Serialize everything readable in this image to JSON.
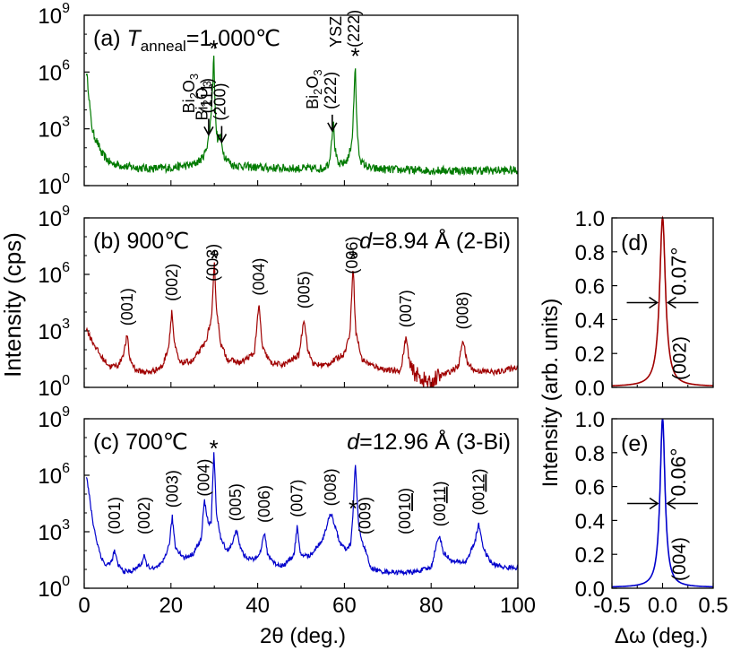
{
  "figure": {
    "y_label_left": "Intensity (cps)",
    "y_label_right": "Intensity (arb. units)",
    "x_label_left": "2θ (deg.)",
    "x_label_right": "Δω (deg.)"
  },
  "chart_data": [
    {
      "id": "a",
      "type": "line",
      "panel_label": "(a)",
      "title_prefix": "T",
      "title_sub": "anneal",
      "title_suffix": "=1,000℃",
      "xlim": [
        0,
        100
      ],
      "ylim_log10": [
        0,
        9
      ],
      "y_ticks": [
        "10^0",
        "10^3",
        "10^6",
        "10^9"
      ],
      "x_ticks": [],
      "color": "#007a00",
      "series": [
        {
          "x": [
            0.5,
            1,
            1.5,
            2,
            3,
            4,
            6,
            10,
            15,
            20,
            25,
            27,
            28,
            28.8,
            29.2,
            29.6,
            29.9,
            30.1,
            30.4,
            30.8,
            31.3,
            31.7,
            32.3,
            34,
            40,
            50,
            55,
            56.5,
            57.2,
            57.5,
            57.8,
            58.5,
            60,
            61,
            61.8,
            62.2,
            62.5,
            62.8,
            63.3,
            64,
            66,
            70,
            80,
            90,
            100
          ],
          "y": [
            6.0,
            5.0,
            3.6,
            2.8,
            2.3,
            1.7,
            1.2,
            1.0,
            0.9,
            0.95,
            1.1,
            1.4,
            1.8,
            2.7,
            3.6,
            5.2,
            7.0,
            4.8,
            3.0,
            2.4,
            2.7,
            2.2,
            1.6,
            1.1,
            0.95,
            0.9,
            0.9,
            1.2,
            2.8,
            3.2,
            2.0,
            1.1,
            1.2,
            1.5,
            2.5,
            4.5,
            6.6,
            3.5,
            1.8,
            1.2,
            0.9,
            0.85,
            0.8,
            0.8,
            0.8
          ],
          "noise": 0.45
        }
      ],
      "annotations": [
        {
          "lines": [
            "Bi2O3",
            "(111)"
          ],
          "x": 28.7,
          "arrow": true
        },
        {
          "lines": [
            "Bi2O3",
            "(200)"
          ],
          "x": 31.7,
          "arrow": true
        },
        {
          "lines": [
            "Bi2O3",
            "(222)"
          ],
          "x": 57.2,
          "arrow": true
        },
        {
          "lines": [
            "YSZ",
            "(222)"
          ],
          "x": 62.6,
          "arrow": false
        }
      ],
      "stars": [
        29.9,
        62.5
      ]
    },
    {
      "id": "b",
      "type": "line",
      "panel_label": "(b) 900℃",
      "d_prefix": "d",
      "d_text": "=8.94 Å (2-Bi)",
      "xlim": [
        0,
        100
      ],
      "ylim_log10": [
        0,
        9
      ],
      "y_ticks": [
        "10^0",
        "10^3",
        "10^6",
        "10^9"
      ],
      "x_ticks": [],
      "color": "#a00000",
      "series": [
        {
          "x": [
            0.5,
            2,
            4,
            6,
            8,
            9.2,
            9.9,
            10.5,
            12,
            15,
            18,
            19.5,
            20.2,
            20.8,
            22,
            25,
            28,
            29.4,
            30.0,
            30.5,
            31.5,
            33,
            36,
            39.2,
            40.3,
            41.1,
            43,
            46,
            49.5,
            50.7,
            51.6,
            53,
            56,
            58,
            60,
            61.3,
            62.0,
            62.6,
            64,
            66,
            70,
            73,
            74.2,
            75.2,
            77,
            79,
            80,
            81,
            84,
            86.3,
            87.3,
            88.3,
            90,
            95,
            100
          ],
          "y": [
            3.1,
            2.4,
            1.6,
            1.1,
            1.2,
            1.9,
            2.8,
            1.5,
            0.9,
            0.8,
            1.1,
            2.2,
            4.1,
            2.3,
            1.3,
            1.4,
            2.4,
            3.7,
            6.6,
            4.2,
            2.3,
            1.5,
            1.3,
            1.8,
            4.4,
            2.1,
            1.3,
            1.2,
            1.7,
            3.7,
            1.9,
            1.2,
            1.2,
            1.5,
            1.8,
            2.9,
            6.6,
            3.0,
            1.5,
            1.2,
            0.9,
            0.9,
            2.7,
            1.0,
            0.6,
            0.3,
            0.1,
            0.5,
            0.8,
            1.1,
            2.6,
            1.3,
            0.9,
            0.8,
            1.1
          ],
          "noise": 0.3
        }
      ],
      "peak_labels": [
        {
          "text": "(001)",
          "x": 9.9
        },
        {
          "text": "(002)",
          "x": 20.2
        },
        {
          "text": "(003)",
          "x": 29.7
        },
        {
          "text": "(004)",
          "x": 40.3
        },
        {
          "text": "(005)",
          "x": 50.7
        },
        {
          "text": "(006)",
          "x": 61.8
        },
        {
          "text": "(007)",
          "x": 74.2
        },
        {
          "text": "(008)",
          "x": 87.3
        }
      ],
      "stars": [
        30.0,
        62.0
      ]
    },
    {
      "id": "c",
      "type": "line",
      "panel_label": "(c) 700℃",
      "d_prefix": "d",
      "d_text": "=12.96 Å (3-Bi)",
      "xlim": [
        0,
        100
      ],
      "ylim_log10": [
        0,
        9
      ],
      "y_ticks": [
        "10^0",
        "10^3",
        "10^6",
        "10^9"
      ],
      "x_ticks": [
        "0",
        "20",
        "40",
        "60",
        "80",
        "100"
      ],
      "color": "#0000cc",
      "series": [
        {
          "x": [
            0.5,
            1,
            2,
            3,
            4,
            5,
            6.3,
            7.0,
            7.7,
            9,
            11,
            13.2,
            13.8,
            14.5,
            16,
            18,
            19.6,
            20.3,
            21,
            23,
            25,
            27,
            27.7,
            28.2,
            28.7,
            29.3,
            29.9,
            30.5,
            31.5,
            33,
            34.3,
            35.0,
            35.8,
            37,
            39,
            40.8,
            41.5,
            42.3,
            44,
            46,
            48.4,
            49.1,
            49.8,
            52,
            55,
            56.3,
            57.0,
            57.8,
            59,
            60.5,
            61.5,
            62.0,
            62.5,
            63.3,
            64.5,
            65.3,
            66,
            68,
            72,
            76,
            80,
            81.2,
            82.0,
            82.8,
            85,
            88,
            90.0,
            91.0,
            92.2,
            94,
            97,
            100
          ],
          "y": [
            6.0,
            5.2,
            3.5,
            2.4,
            1.6,
            1.2,
            1.4,
            2.0,
            1.3,
            0.9,
            0.9,
            1.3,
            1.7,
            1.2,
            1.0,
            1.3,
            2.3,
            3.8,
            2.2,
            1.6,
            1.8,
            2.6,
            4.7,
            4.0,
            3.4,
            3.6,
            7.2,
            4.0,
            2.6,
            2.0,
            2.4,
            3.2,
            2.3,
            1.7,
            1.5,
            2.0,
            3.0,
            1.8,
            1.3,
            1.2,
            1.8,
            3.3,
            1.8,
            1.7,
            2.6,
            3.6,
            4.0,
            3.3,
            2.4,
            2.0,
            2.4,
            4.0,
            6.7,
            3.2,
            2.2,
            1.7,
            1.1,
            0.9,
            0.85,
            0.85,
            1.1,
            2.3,
            2.8,
            1.9,
            1.4,
            1.4,
            2.4,
            3.4,
            2.0,
            1.3,
            1.1,
            1.1
          ],
          "noise": 0.25
        }
      ],
      "peak_labels": [
        {
          "text": "(001)",
          "x": 7.0
        },
        {
          "text": "(002)",
          "x": 13.8
        },
        {
          "text": "(003)",
          "x": 20.3
        },
        {
          "text": "(004)",
          "x": 27.6
        },
        {
          "text": "(005)",
          "x": 34.9
        },
        {
          "text": "(006)",
          "x": 41.5
        },
        {
          "text": "(007)",
          "x": 49.1
        },
        {
          "text": "(008)",
          "x": 56.8
        },
        {
          "text": "(009)",
          "x": 64.8
        },
        {
          "text": "(0010)",
          "x": 74.0
        },
        {
          "text": "(0011)",
          "x": 82.0
        },
        {
          "text": "(0012)",
          "x": 91.0
        }
      ],
      "stars": [
        29.9,
        62.0
      ]
    },
    {
      "id": "d",
      "type": "line",
      "panel_label": "(d)",
      "fwhm_label": "0.07°",
      "reflection_label": "(002)",
      "xlim": [
        -0.5,
        0.5
      ],
      "ylim": [
        0,
        1.0
      ],
      "y_ticks": [
        "0.0",
        "0.2",
        "0.4",
        "0.6",
        "0.8",
        "1.0"
      ],
      "x_ticks": [],
      "color": "#a00000",
      "peak": {
        "center": 0.0,
        "fwhm": 0.07,
        "max": 1.0,
        "floor": 0.005
      }
    },
    {
      "id": "e",
      "type": "line",
      "panel_label": "(e)",
      "fwhm_label": "0.06°",
      "reflection_label": "(004)",
      "xlim": [
        -0.5,
        0.5
      ],
      "ylim": [
        0,
        1.0
      ],
      "y_ticks": [
        "0.0",
        "0.2",
        "0.4",
        "0.6",
        "0.8",
        "1.0"
      ],
      "x_ticks": [
        "-0.5",
        "0.0",
        "0.5"
      ],
      "color": "#0000cc",
      "peak": {
        "center": 0.0,
        "fwhm": 0.06,
        "max": 1.0,
        "floor": 0.005
      }
    }
  ]
}
